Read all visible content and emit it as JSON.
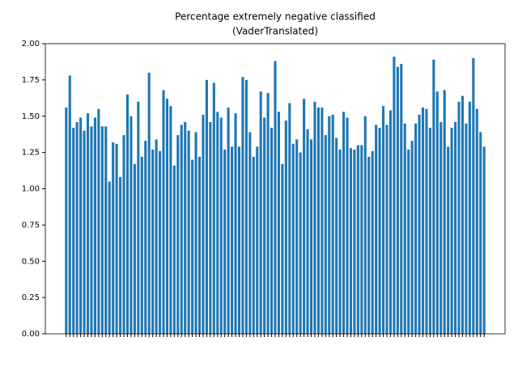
{
  "chart_data": {
    "type": "bar",
    "title": [
      "Percentage extremely negative classified",
      "(VaderTranslated)"
    ],
    "color": "#1f77b4",
    "categories": [
      null,
      null,
      null,
      null,
      null,
      null,
      null,
      null,
      null,
      null,
      null,
      null,
      null,
      null,
      null,
      null,
      null,
      null,
      null,
      null,
      null,
      null,
      null,
      null,
      null,
      null,
      null,
      null,
      null,
      null,
      null,
      null,
      null,
      null,
      null,
      null,
      null,
      null,
      null,
      null,
      null,
      null,
      null,
      null,
      null,
      null,
      null,
      null,
      null,
      null,
      null,
      null,
      null,
      null,
      null,
      null,
      null,
      null,
      null,
      null,
      null,
      null,
      null,
      null,
      null,
      null,
      null,
      null,
      null,
      null,
      null,
      null,
      null,
      null,
      null,
      null,
      null,
      null,
      null,
      null,
      null,
      null,
      null,
      null,
      null,
      null,
      null,
      null,
      null,
      null,
      null,
      null,
      null,
      null,
      null,
      null,
      null,
      null,
      null,
      null,
      null,
      null,
      null,
      null,
      null,
      null,
      null,
      null,
      null,
      null,
      null,
      null,
      null,
      null,
      null,
      null,
      null
    ],
    "values": [
      1.56,
      1.78,
      1.42,
      1.46,
      1.49,
      1.4,
      1.52,
      1.43,
      1.49,
      1.55,
      1.43,
      1.43,
      1.05,
      1.32,
      1.31,
      1.08,
      1.37,
      1.65,
      1.5,
      1.17,
      1.6,
      1.22,
      1.33,
      1.8,
      1.27,
      1.34,
      1.26,
      1.68,
      1.62,
      1.57,
      1.16,
      1.37,
      1.44,
      1.46,
      1.4,
      1.2,
      1.39,
      1.22,
      1.51,
      1.75,
      1.46,
      1.73,
      1.53,
      1.49,
      1.27,
      1.56,
      1.29,
      1.52,
      1.29,
      1.77,
      1.75,
      1.39,
      1.22,
      1.29,
      1.67,
      1.49,
      1.66,
      1.42,
      1.88,
      1.53,
      1.17,
      1.47,
      1.59,
      1.31,
      1.34,
      1.25,
      1.62,
      1.41,
      1.34,
      1.6,
      1.56,
      1.56,
      1.37,
      1.5,
      1.51,
      1.35,
      1.27,
      1.53,
      1.49,
      1.28,
      1.27,
      1.3,
      1.3,
      1.5,
      1.22,
      1.26,
      1.44,
      1.42,
      1.57,
      1.44,
      1.54,
      1.91,
      1.84,
      1.86,
      1.45,
      1.27,
      1.33,
      1.45,
      1.51,
      1.56,
      1.55,
      1.42,
      1.89,
      1.67,
      1.46,
      1.68,
      1.29,
      1.42,
      1.46,
      1.6,
      1.64,
      1.45,
      1.6,
      1.9,
      1.55,
      1.39,
      1.29
    ],
    "ylim": [
      0,
      2
    ],
    "yticks": [
      {
        "value": 0,
        "label": "0.00"
      },
      {
        "value": 0.25,
        "label": "0.25"
      },
      {
        "value": 0.5,
        "label": "0.50"
      },
      {
        "value": 0.75,
        "label": "0.75"
      },
      {
        "value": 1,
        "label": "1.00"
      },
      {
        "value": 1.25,
        "label": "1.25"
      },
      {
        "value": 1.5,
        "label": "1.50"
      },
      {
        "value": 1.75,
        "label": "1.75"
      },
      {
        "value": 2,
        "label": "2.00"
      }
    ]
  }
}
